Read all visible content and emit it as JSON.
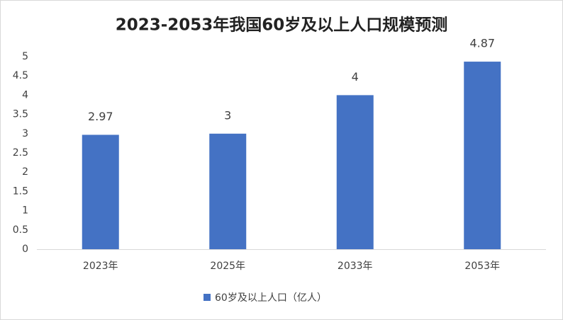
{
  "chart_data": {
    "type": "bar",
    "title": "2023-2053年我国60岁及以上人口规模预测",
    "categories": [
      "2023年",
      "2025年",
      "2033年",
      "2053年"
    ],
    "series": [
      {
        "name": "60岁及以上人口（亿人）",
        "color": "#4472c4",
        "values": [
          2.97,
          3,
          4,
          4.87
        ]
      }
    ],
    "ylim": [
      0,
      5
    ],
    "yticks": [
      0,
      0.5,
      1,
      1.5,
      2,
      2.5,
      3,
      3.5,
      4,
      4.5,
      5
    ],
    "grid": false,
    "legend": "bottom"
  }
}
